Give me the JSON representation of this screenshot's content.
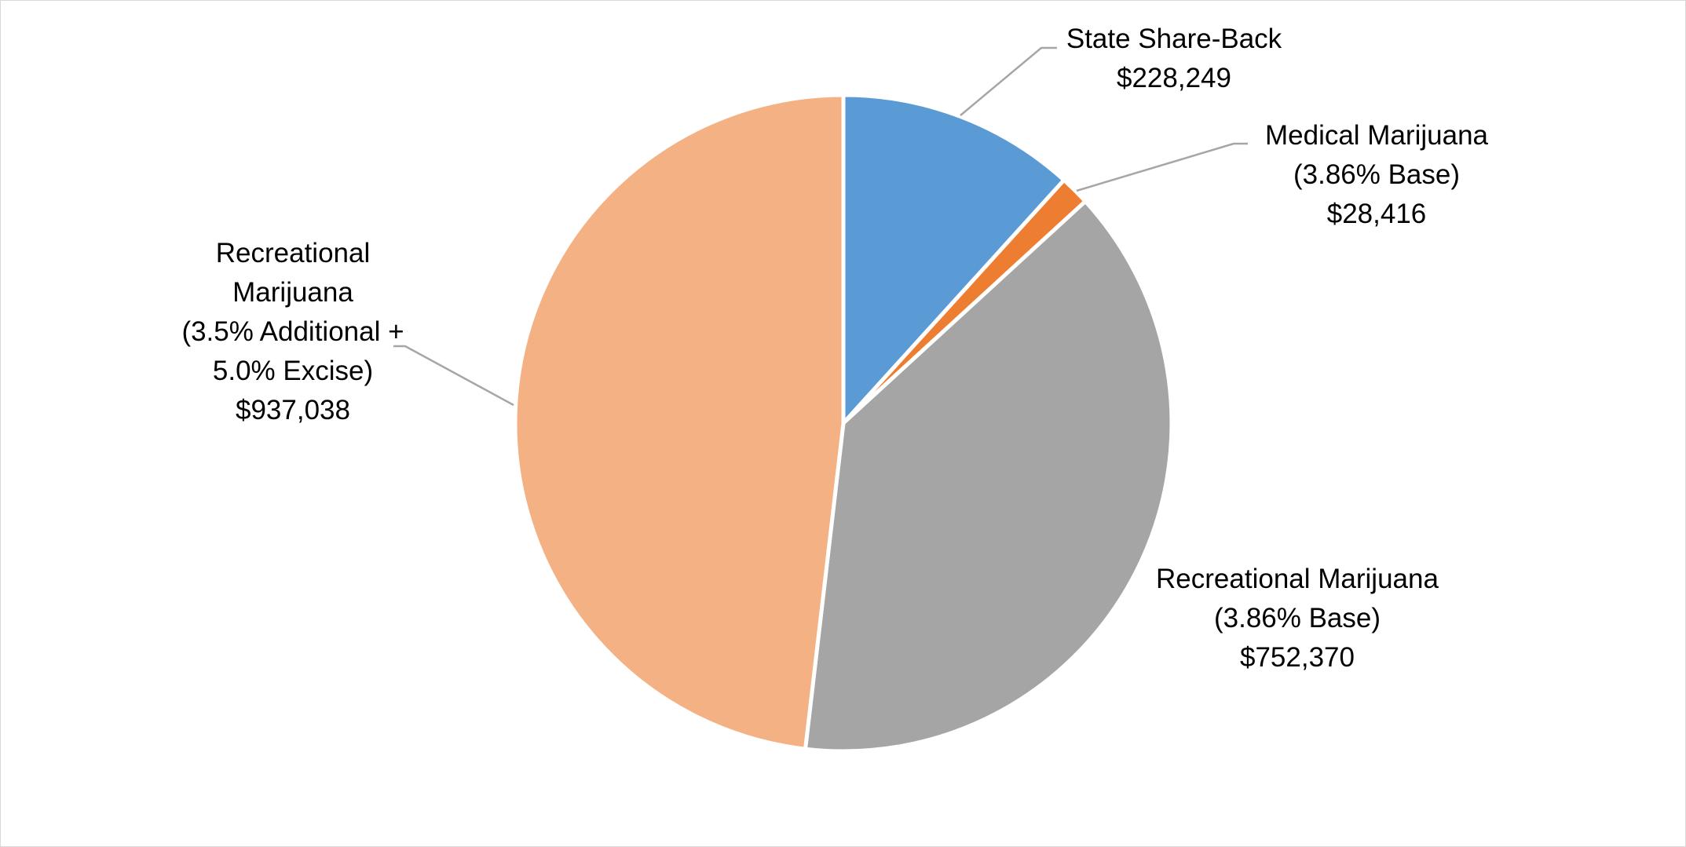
{
  "chart_data": {
    "type": "pie",
    "slices": [
      {
        "lines": [
          "State Share-Back",
          "$228,249"
        ],
        "value": 228249,
        "color": "#5B9BD5"
      },
      {
        "lines": [
          "Medical Marijuana",
          "(3.86% Base)",
          "$28,416"
        ],
        "value": 28416,
        "color": "#ED7D31"
      },
      {
        "lines": [
          "Recreational Marijuana",
          "(3.86% Base)",
          "$752,370"
        ],
        "value": 752370,
        "color": "#A5A5A5"
      },
      {
        "lines": [
          "Recreational",
          "Marijuana",
          "(3.5% Additional +",
          "5.0% Excise)",
          "$937,038"
        ],
        "value": 937038,
        "color": "#F4B183"
      }
    ],
    "start_angle": "12 o'clock",
    "direction": "clockwise",
    "legend": "none",
    "leader_line_color": "#A6A6A6",
    "slice_border_color": "#FFFFFF"
  }
}
